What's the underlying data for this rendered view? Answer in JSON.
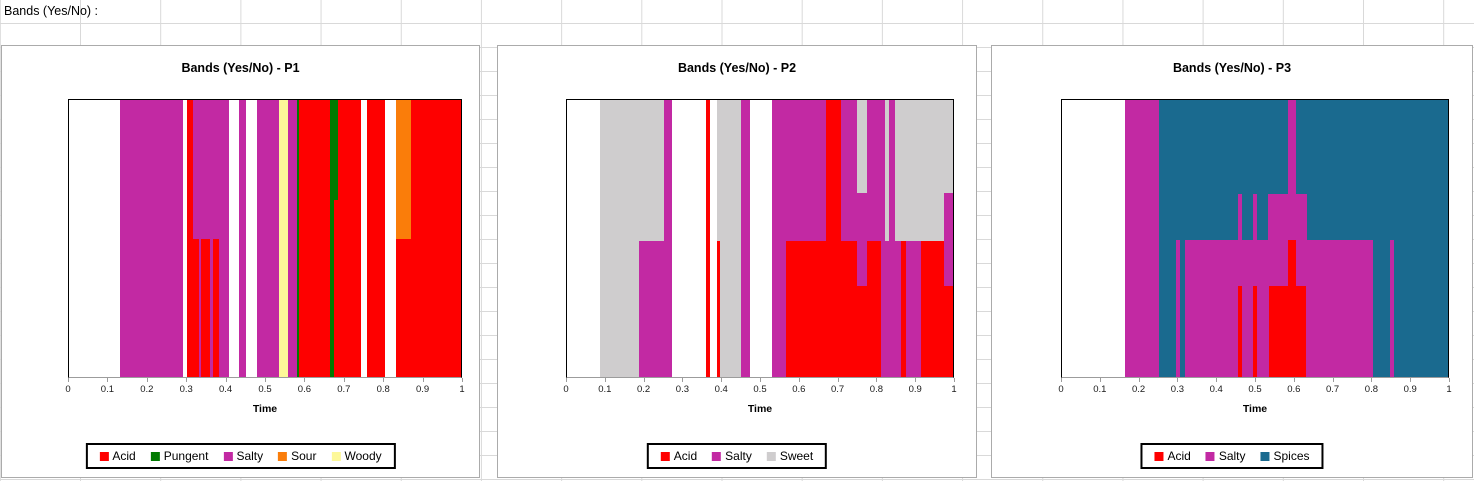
{
  "header": {
    "label": "Bands (Yes/No) :"
  },
  "colors": {
    "Acid": "#fe0000",
    "Pungent": "#007a00",
    "Salty": "#c229a3",
    "Sour": "#fa7d0a",
    "Woody": "#fdf899",
    "Sweet": "#cfcdce",
    "Spices": "#1a6a8f"
  },
  "axis": {
    "label": "Time",
    "ticks": [
      "0",
      "0.1",
      "0.2",
      "0.3",
      "0.4",
      "0.5",
      "0.6",
      "0.7",
      "0.8",
      "0.9",
      "1"
    ],
    "range": [
      0,
      1
    ]
  },
  "chart_data": [
    {
      "type": "area",
      "subtype": "temporal-yes-no-bands",
      "title": "Bands (Yes/No) - P1",
      "xlabel": "Time",
      "x_range": [
        0,
        1
      ],
      "y_units": "fraction of plot height, 0 = top",
      "legend": [
        "Acid",
        "Pungent",
        "Salty",
        "Sour",
        "Woody"
      ],
      "legend_position": "bottom",
      "grid": false,
      "bands": [
        {
          "a": "Salty",
          "x": [
            0.13,
            0.292
          ],
          "y": [
            0,
            1
          ]
        },
        {
          "a": "Salty",
          "x": [
            0.317,
            0.407
          ],
          "y": [
            0,
            1
          ]
        },
        {
          "a": "Acid",
          "x": [
            0.302,
            0.317
          ],
          "y": [
            0,
            1
          ]
        },
        {
          "a": "Acid",
          "x": [
            0.317,
            0.332
          ],
          "y": [
            0.5,
            1
          ]
        },
        {
          "a": "Acid",
          "x": [
            0.338,
            0.36
          ],
          "y": [
            0.5,
            1
          ]
        },
        {
          "a": "Acid",
          "x": [
            0.368,
            0.382
          ],
          "y": [
            0.5,
            1
          ]
        },
        {
          "a": "Salty",
          "x": [
            0.434,
            0.451
          ],
          "y": [
            0,
            1
          ]
        },
        {
          "a": "Salty",
          "x": [
            0.479,
            0.536
          ],
          "y": [
            0,
            1
          ]
        },
        {
          "a": "Woody",
          "x": [
            0.536,
            0.558
          ],
          "y": [
            0,
            1
          ]
        },
        {
          "a": "Salty",
          "x": [
            0.558,
            0.581
          ],
          "y": [
            0,
            1
          ]
        },
        {
          "a": "Pungent",
          "x": [
            0.581,
            0.588
          ],
          "y": [
            0,
            1
          ]
        },
        {
          "a": "Acid",
          "x": [
            0.588,
            0.666
          ],
          "y": [
            0,
            1
          ]
        },
        {
          "a": "Pungent",
          "x": [
            0.666,
            0.685
          ],
          "y": [
            0,
            0.36
          ]
        },
        {
          "a": "Pungent",
          "x": [
            0.666,
            0.676
          ],
          "y": [
            0.36,
            1
          ]
        },
        {
          "a": "Acid",
          "x": [
            0.676,
            0.685
          ],
          "y": [
            0.36,
            1
          ]
        },
        {
          "a": "Acid",
          "x": [
            0.685,
            0.744
          ],
          "y": [
            0,
            1
          ]
        },
        {
          "a": "Acid",
          "x": [
            0.759,
            0.805
          ],
          "y": [
            0,
            1
          ]
        },
        {
          "a": "Sour",
          "x": [
            0.833,
            0.873
          ],
          "y": [
            0,
            0.5
          ]
        },
        {
          "a": "Acid",
          "x": [
            0.833,
            0.873
          ],
          "y": [
            0.5,
            1
          ]
        },
        {
          "a": "Acid",
          "x": [
            0.873,
            1.0
          ],
          "y": [
            0,
            1
          ]
        }
      ]
    },
    {
      "type": "area",
      "subtype": "temporal-yes-no-bands",
      "title": "Bands (Yes/No) - P2",
      "xlabel": "Time",
      "x_range": [
        0,
        1
      ],
      "y_units": "fraction of plot height, 0 = top",
      "legend": [
        "Acid",
        "Salty",
        "Sweet"
      ],
      "legend_position": "bottom",
      "grid": false,
      "bands": [
        {
          "a": "Sweet",
          "x": [
            0.086,
            0.251
          ],
          "y": [
            0,
            1
          ]
        },
        {
          "a": "Salty",
          "x": [
            0.186,
            0.251
          ],
          "y": [
            0.51,
            1
          ]
        },
        {
          "a": "Salty",
          "x": [
            0.251,
            0.271
          ],
          "y": [
            0,
            1
          ]
        },
        {
          "a": "Acid",
          "x": [
            0.36,
            0.37
          ],
          "y": [
            0,
            1
          ]
        },
        {
          "a": "Sweet",
          "x": [
            0.389,
            0.451
          ],
          "y": [
            0,
            1
          ]
        },
        {
          "a": "Acid",
          "x": [
            0.389,
            0.397
          ],
          "y": [
            0.51,
            1
          ]
        },
        {
          "a": "Salty",
          "x": [
            0.451,
            0.473
          ],
          "y": [
            0,
            1
          ]
        },
        {
          "a": "Salty",
          "x": [
            0.531,
            0.672
          ],
          "y": [
            0,
            1
          ]
        },
        {
          "a": "Acid",
          "x": [
            0.567,
            0.672
          ],
          "y": [
            0.51,
            1
          ]
        },
        {
          "a": "Acid",
          "x": [
            0.672,
            0.709
          ],
          "y": [
            0,
            1
          ]
        },
        {
          "a": "Salty",
          "x": [
            0.709,
            0.751
          ],
          "y": [
            0,
            0.51
          ]
        },
        {
          "a": "Acid",
          "x": [
            0.709,
            0.751
          ],
          "y": [
            0.51,
            1
          ]
        },
        {
          "a": "Sweet",
          "x": [
            0.751,
            0.776
          ],
          "y": [
            0,
            0.335
          ]
        },
        {
          "a": "Salty",
          "x": [
            0.751,
            0.776
          ],
          "y": [
            0.335,
            0.67
          ]
        },
        {
          "a": "Acid",
          "x": [
            0.751,
            0.776
          ],
          "y": [
            0.67,
            1
          ]
        },
        {
          "a": "Salty",
          "x": [
            0.776,
            0.823
          ],
          "y": [
            0,
            0.51
          ]
        },
        {
          "a": "Acid",
          "x": [
            0.776,
            0.814
          ],
          "y": [
            0.51,
            1
          ]
        },
        {
          "a": "Salty",
          "x": [
            0.814,
            0.866
          ],
          "y": [
            0.51,
            1
          ]
        },
        {
          "a": "Sweet",
          "x": [
            0.823,
            0.833
          ],
          "y": [
            0,
            0.51
          ]
        },
        {
          "a": "Salty",
          "x": [
            0.833,
            0.851
          ],
          "y": [
            0,
            0.51
          ]
        },
        {
          "a": "Sweet",
          "x": [
            0.851,
            0.976
          ],
          "y": [
            0,
            0.51
          ]
        },
        {
          "a": "Acid",
          "x": [
            0.866,
            0.877
          ],
          "y": [
            0.51,
            1
          ]
        },
        {
          "a": "Salty",
          "x": [
            0.877,
            0.917
          ],
          "y": [
            0.51,
            1
          ]
        },
        {
          "a": "Acid",
          "x": [
            0.917,
            0.976
          ],
          "y": [
            0.51,
            1
          ]
        },
        {
          "a": "Sweet",
          "x": [
            0.976,
            1.0
          ],
          "y": [
            0,
            0.335
          ]
        },
        {
          "a": "Salty",
          "x": [
            0.976,
            1.0
          ],
          "y": [
            0.335,
            0.67
          ]
        },
        {
          "a": "Acid",
          "x": [
            0.976,
            1.0
          ],
          "y": [
            0.67,
            1
          ]
        }
      ]
    },
    {
      "type": "area",
      "subtype": "temporal-yes-no-bands",
      "title": "Bands (Yes/No) - P3",
      "xlabel": "Time",
      "x_range": [
        0,
        1
      ],
      "y_units": "fraction of plot height, 0 = top",
      "legend": [
        "Acid",
        "Salty",
        "Spices"
      ],
      "legend_position": "bottom",
      "grid": false,
      "bands": [
        {
          "a": "Salty",
          "x": [
            0.162,
            0.252
          ],
          "y": [
            0,
            1
          ]
        },
        {
          "a": "Spices",
          "x": [
            0.252,
            1.0
          ],
          "y": [
            0,
            1
          ]
        },
        {
          "a": "Salty",
          "x": [
            0.295,
            0.307
          ],
          "y": [
            0.505,
            1
          ]
        },
        {
          "a": "Salty",
          "x": [
            0.318,
            0.805
          ],
          "y": [
            0.505,
            1
          ]
        },
        {
          "a": "Salty",
          "x": [
            0.849,
            0.861
          ],
          "y": [
            0.505,
            1
          ]
        },
        {
          "a": "Salty",
          "x": [
            0.456,
            0.467
          ],
          "y": [
            0.34,
            0.505
          ]
        },
        {
          "a": "Salty",
          "x": [
            0.494,
            0.506
          ],
          "y": [
            0.34,
            0.505
          ]
        },
        {
          "a": "Salty",
          "x": [
            0.534,
            0.636
          ],
          "y": [
            0.34,
            0.505
          ]
        },
        {
          "a": "Salty",
          "x": [
            0.585,
            0.606
          ],
          "y": [
            0,
            0.34
          ]
        },
        {
          "a": "Acid",
          "x": [
            0.457,
            0.467
          ],
          "y": [
            0.672,
            1
          ]
        },
        {
          "a": "Acid",
          "x": [
            0.494,
            0.505
          ],
          "y": [
            0.672,
            1
          ]
        },
        {
          "a": "Acid",
          "x": [
            0.536,
            0.633
          ],
          "y": [
            0.672,
            1
          ]
        },
        {
          "a": "Acid",
          "x": [
            0.585,
            0.607
          ],
          "y": [
            0.505,
            0.672
          ]
        }
      ]
    }
  ]
}
